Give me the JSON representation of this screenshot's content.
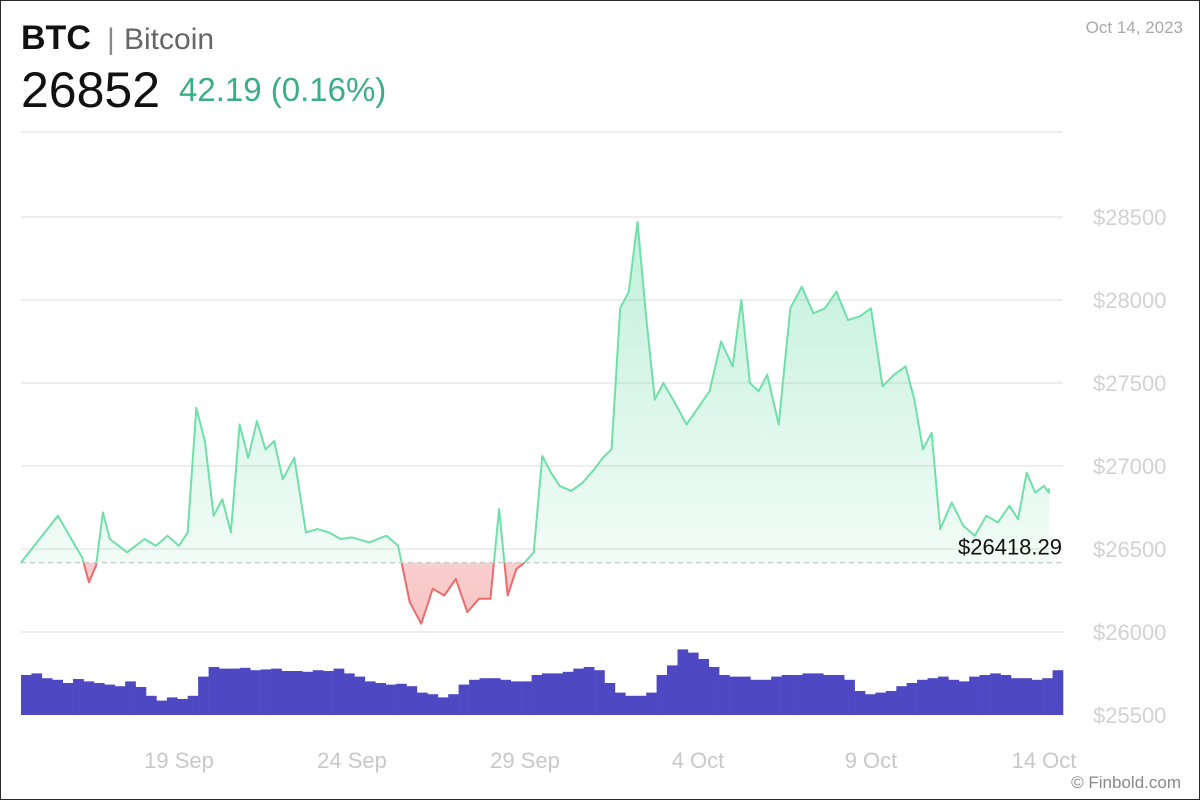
{
  "header": {
    "symbol": "BTC",
    "separator": "|",
    "name": "Bitcoin",
    "price": "26852",
    "change": "42.19 (0.16%)",
    "date": "Oct 14, 2023"
  },
  "footer": {
    "credit": "© Finbold.com"
  },
  "colors": {
    "up_line": "#6ee0a8",
    "down_line": "#ec6b6b",
    "up_fill": "#3fcf8e",
    "down_fill": "#f4a3a3",
    "volume": "#4e48c2",
    "grid": "#dddddd",
    "baseline": "#cccccc"
  },
  "chart_data": {
    "type": "area",
    "title": "",
    "xlabel": "",
    "ylabel": "",
    "ylim": [
      25300,
      28800
    ],
    "y_ticks": [
      "$28500",
      "$28000",
      "$27500",
      "$27000",
      "$26500",
      "$26000",
      "$25500"
    ],
    "y_tick_values": [
      28500,
      28000,
      27500,
      27000,
      26500,
      26000,
      25500
    ],
    "x_ticks": [
      "19 Sep",
      "24 Sep",
      "29 Sep",
      "4 Oct",
      "9 Oct",
      "14 Oct"
    ],
    "x_tick_values": [
      "2023-09-19",
      "2023-09-24",
      "2023-09-29",
      "2023-10-04",
      "2023-10-09",
      "2023-10-14"
    ],
    "x_range": [
      "2023-09-15",
      "2023-10-15"
    ],
    "reference_line": {
      "value": 26418.29,
      "label": "$26418.29"
    },
    "grid": true,
    "series": [
      {
        "points": [
          [
            "2023-09-15",
            26418.29
          ],
          [
            "2023-09-15",
            26700
          ],
          [
            "2023-09-16",
            26520
          ],
          [
            "2023-09-16",
            26450
          ],
          [
            "2023-09-16",
            26300
          ],
          [
            "2023-09-16",
            26400
          ],
          [
            "2023-09-16",
            26720
          ],
          [
            "2023-09-17",
            26560
          ],
          [
            "2023-09-17",
            26480
          ],
          [
            "2023-09-18",
            26560
          ],
          [
            "2023-09-18",
            26520
          ],
          [
            "2023-09-18",
            26580
          ],
          [
            "2023-09-19",
            26520
          ],
          [
            "2023-09-19",
            26600
          ],
          [
            "2023-09-19",
            27350
          ],
          [
            "2023-09-19",
            27150
          ],
          [
            "2023-09-20",
            26700
          ],
          [
            "2023-09-20",
            26800
          ],
          [
            "2023-09-20",
            26600
          ],
          [
            "2023-09-20",
            27250
          ],
          [
            "2023-09-21",
            27050
          ],
          [
            "2023-09-21",
            27270
          ],
          [
            "2023-09-21",
            27100
          ],
          [
            "2023-09-21",
            27150
          ],
          [
            "2023-09-22",
            26920
          ],
          [
            "2023-09-22",
            27050
          ],
          [
            "2023-09-22",
            26600
          ],
          [
            "2023-09-23",
            26620
          ],
          [
            "2023-09-23",
            26600
          ],
          [
            "2023-09-23",
            26560
          ],
          [
            "2023-09-24",
            26570
          ],
          [
            "2023-09-24",
            26540
          ],
          [
            "2023-09-25",
            26580
          ],
          [
            "2023-09-25",
            26520
          ],
          [
            "2023-09-25",
            26180
          ],
          [
            "2023-09-26",
            26050
          ],
          [
            "2023-09-26",
            26260
          ],
          [
            "2023-09-26",
            26220
          ],
          [
            "2023-09-27",
            26320
          ],
          [
            "2023-09-27",
            26120
          ],
          [
            "2023-09-27",
            26200
          ],
          [
            "2023-09-28",
            26200
          ],
          [
            "2023-09-28",
            26740
          ],
          [
            "2023-09-28",
            26220
          ],
          [
            "2023-09-28",
            26380
          ],
          [
            "2023-09-29",
            26420
          ],
          [
            "2023-09-29",
            26480
          ],
          [
            "2023-09-29",
            27060
          ],
          [
            "2023-09-29",
            26960
          ],
          [
            "2023-09-30",
            26880
          ],
          [
            "2023-09-30",
            26850
          ],
          [
            "2023-09-30",
            26900
          ],
          [
            "2023-10-01",
            26980
          ],
          [
            "2023-10-01",
            27050
          ],
          [
            "2023-10-01",
            27100
          ],
          [
            "2023-10-01",
            27950
          ],
          [
            "2023-10-02",
            28050
          ],
          [
            "2023-10-02",
            28470
          ],
          [
            "2023-10-02",
            27900
          ],
          [
            "2023-10-02",
            27400
          ],
          [
            "2023-10-03",
            27500
          ],
          [
            "2023-10-03",
            27380
          ],
          [
            "2023-10-03",
            27250
          ],
          [
            "2023-10-04",
            27350
          ],
          [
            "2023-10-04",
            27450
          ],
          [
            "2023-10-04",
            27750
          ],
          [
            "2023-10-05",
            27600
          ],
          [
            "2023-10-05",
            28000
          ],
          [
            "2023-10-05",
            27500
          ],
          [
            "2023-10-05",
            27450
          ],
          [
            "2023-10-06",
            27550
          ],
          [
            "2023-10-06",
            27250
          ],
          [
            "2023-10-06",
            27950
          ],
          [
            "2023-10-07",
            28080
          ],
          [
            "2023-10-07",
            27920
          ],
          [
            "2023-10-07",
            27950
          ],
          [
            "2023-10-08",
            28050
          ],
          [
            "2023-10-08",
            27880
          ],
          [
            "2023-10-08",
            27900
          ],
          [
            "2023-10-09",
            27950
          ],
          [
            "2023-10-09",
            27480
          ],
          [
            "2023-10-09",
            27550
          ],
          [
            "2023-10-10",
            27600
          ],
          [
            "2023-10-10",
            27400
          ],
          [
            "2023-10-10",
            27100
          ],
          [
            "2023-10-10",
            27200
          ],
          [
            "2023-10-11",
            26620
          ],
          [
            "2023-10-11",
            26780
          ],
          [
            "2023-10-11",
            26640
          ],
          [
            "2023-10-12",
            26580
          ],
          [
            "2023-10-12",
            26700
          ],
          [
            "2023-10-12",
            26660
          ],
          [
            "2023-10-13",
            26760
          ],
          [
            "2023-10-13",
            26680
          ],
          [
            "2023-10-13",
            26960
          ],
          [
            "2023-10-13",
            26840
          ],
          [
            "2023-10-14",
            26880
          ],
          [
            "2023-10-14",
            26840
          ],
          [
            "2023-10-14",
            26860
          ],
          [
            "2023-10-14",
            26852
          ]
        ]
      }
    ],
    "volume": {
      "note": "relative volume bars, unlabeled",
      "values": [
        0.5,
        0.52,
        0.46,
        0.44,
        0.4,
        0.45,
        0.42,
        0.4,
        0.38,
        0.36,
        0.42,
        0.35,
        0.24,
        0.18,
        0.22,
        0.2,
        0.24,
        0.48,
        0.6,
        0.58,
        0.58,
        0.59,
        0.56,
        0.57,
        0.58,
        0.55,
        0.55,
        0.54,
        0.56,
        0.55,
        0.58,
        0.52,
        0.48,
        0.42,
        0.4,
        0.38,
        0.39,
        0.36,
        0.28,
        0.26,
        0.22,
        0.26,
        0.38,
        0.44,
        0.46,
        0.46,
        0.44,
        0.42,
        0.42,
        0.5,
        0.52,
        0.52,
        0.54,
        0.58,
        0.6,
        0.56,
        0.4,
        0.28,
        0.24,
        0.24,
        0.28,
        0.5,
        0.62,
        0.82,
        0.78,
        0.7,
        0.6,
        0.5,
        0.48,
        0.48,
        0.44,
        0.44,
        0.48,
        0.5,
        0.5,
        0.52,
        0.52,
        0.5,
        0.5,
        0.44,
        0.3,
        0.26,
        0.28,
        0.3,
        0.36,
        0.4,
        0.44,
        0.46,
        0.48,
        0.44,
        0.42,
        0.48,
        0.5,
        0.52,
        0.5,
        0.46,
        0.46,
        0.44,
        0.46,
        0.56
      ]
    }
  }
}
